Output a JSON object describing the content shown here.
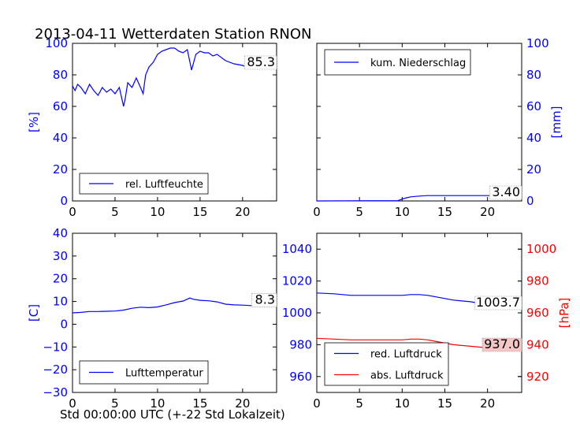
{
  "title": "2013-04-11 Wetterdaten Station RNON",
  "xlabel": "Std 00:00:00 UTC (+-22 Std Lokalzeit)",
  "colors": {
    "blue": "#0000ff",
    "red": "#ff0000",
    "frame": "#000000",
    "valbox_red": "#f4c7c7"
  },
  "chart_data": [
    {
      "id": "humidity",
      "type": "line",
      "xlim": [
        0,
        24
      ],
      "ylim": [
        0,
        100
      ],
      "xticks": [
        "0",
        "5",
        "10",
        "15",
        "20"
      ],
      "yticks": [
        "0",
        "20",
        "40",
        "60",
        "80",
        "100"
      ],
      "ylabel": "[%]",
      "legend": [
        "rel. Luftfeuchte"
      ],
      "last_value": "85.3",
      "series": [
        {
          "name": "rel. Luftfeuchte",
          "color": "#0000ff",
          "x": [
            0,
            0.3,
            0.6,
            1.0,
            1.5,
            2.0,
            2.5,
            3.0,
            3.5,
            4.0,
            4.5,
            5.0,
            5.5,
            6.0,
            6.2,
            6.5,
            7.0,
            7.5,
            8.0,
            8.3,
            8.6,
            9.0,
            9.5,
            10.0,
            10.5,
            11.0,
            11.5,
            12.0,
            12.5,
            13.0,
            13.5,
            14.0,
            14.5,
            15.0,
            15.5,
            16.0,
            16.5,
            17.0,
            18.0,
            19.0,
            20.0,
            21.0,
            22.0,
            23.0,
            24.0
          ],
          "y": [
            73,
            70,
            74,
            72,
            68,
            74,
            70,
            67,
            72,
            69,
            71,
            68,
            72,
            60,
            65,
            75,
            72,
            78,
            72,
            68,
            80,
            85,
            88,
            93,
            95,
            96,
            97,
            97,
            95,
            94,
            96,
            83,
            93,
            95,
            94,
            94,
            92,
            93,
            89,
            87,
            86,
            84,
            86,
            85,
            85.3
          ]
        }
      ]
    },
    {
      "id": "precip",
      "type": "line",
      "xlim": [
        0,
        24
      ],
      "ylim": [
        0,
        100
      ],
      "xticks": [
        "0",
        "5",
        "10",
        "15",
        "20"
      ],
      "yticks": [
        "0",
        "20",
        "40",
        "60",
        "80",
        "100"
      ],
      "ylabel": "[mm]",
      "legend": [
        "kum. Niederschlag"
      ],
      "last_value": "3.40",
      "series": [
        {
          "name": "kum. Niederschlag",
          "color": "#0000ff",
          "x": [
            0,
            9.5,
            10.0,
            10.5,
            11.0,
            12.0,
            13.0,
            24.0
          ],
          "y": [
            0,
            0.2,
            1.2,
            2.0,
            2.6,
            3.1,
            3.4,
            3.4
          ]
        }
      ]
    },
    {
      "id": "temperature",
      "type": "line",
      "xlim": [
        0,
        24
      ],
      "ylim": [
        -30,
        40
      ],
      "xticks": [
        "0",
        "5",
        "10",
        "15",
        "20"
      ],
      "yticks": [
        "−30",
        "−20",
        "−10",
        "0",
        "10",
        "20",
        "30",
        "40"
      ],
      "ylabel": "[C]",
      "legend": [
        "Lufttemperatur"
      ],
      "last_value": "8.3",
      "series": [
        {
          "name": "Lufttemperatur",
          "color": "#0000ff",
          "x": [
            0,
            1,
            2,
            3,
            4,
            5,
            6,
            7,
            8,
            9,
            10,
            11,
            12,
            13,
            13.8,
            14.2,
            15,
            16,
            17,
            18,
            19,
            20,
            21,
            22,
            23,
            24
          ],
          "y": [
            5.0,
            5.2,
            5.6,
            5.6,
            5.7,
            5.8,
            6.2,
            7.0,
            7.5,
            7.3,
            7.6,
            8.5,
            9.5,
            10.2,
            11.5,
            11.0,
            10.5,
            10.3,
            9.8,
            8.8,
            8.5,
            8.4,
            8.2,
            8.3,
            8.2,
            8.3
          ]
        }
      ]
    },
    {
      "id": "pressure",
      "type": "line",
      "xlim": [
        0,
        24
      ],
      "ylim": [
        950,
        1050
      ],
      "ylim_right": [
        910,
        1010
      ],
      "xticks": [
        "0",
        "5",
        "10",
        "15",
        "20"
      ],
      "yticks": [
        "960",
        "980",
        "1000",
        "1020",
        "1040"
      ],
      "yticks_right": [
        "920",
        "940",
        "960",
        "980",
        "1000"
      ],
      "ylabel_right": "[hPa]",
      "legend": [
        "red. Luftdruck",
        "abs. Luftdruck"
      ],
      "last_value": "1003.7",
      "last_value_right": "937.0",
      "series": [
        {
          "name": "red. Luftdruck",
          "color": "#0000ff",
          "axis": "left",
          "x": [
            0,
            2,
            4,
            6,
            8,
            10,
            11,
            12,
            13,
            14,
            15,
            16,
            17,
            18,
            19,
            20,
            21,
            22,
            23,
            24
          ],
          "y": [
            1012.5,
            1012,
            1011,
            1011,
            1011,
            1011,
            1011.5,
            1011.5,
            1011,
            1010,
            1009,
            1008,
            1007.5,
            1007,
            1006,
            1005,
            1004.5,
            1004,
            1004,
            1003.7
          ]
        },
        {
          "name": "abs. Luftdruck",
          "color": "#ff0000",
          "axis": "right",
          "x": [
            0,
            2,
            4,
            6,
            8,
            10,
            11,
            12,
            13,
            14,
            15,
            16,
            17,
            18,
            19,
            20,
            21,
            22,
            23,
            24
          ],
          "y": [
            944,
            943.5,
            943,
            943,
            943,
            943,
            943.5,
            943.5,
            943,
            942,
            941,
            940,
            939.5,
            939,
            938.5,
            938,
            937.5,
            937.2,
            937,
            937.0
          ]
        }
      ]
    }
  ]
}
